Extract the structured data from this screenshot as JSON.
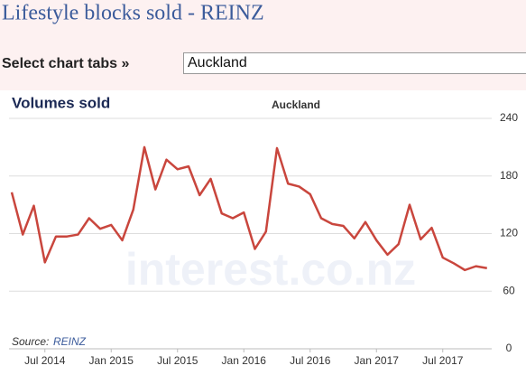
{
  "page": {
    "title": "Lifestyle blocks sold - REINZ",
    "selector_label": "Select chart tabs »",
    "selector_value": "Auckland"
  },
  "chart_data": {
    "type": "line",
    "title": "Volumes sold",
    "subtitle": "Auckland",
    "source_label": "Source:",
    "source": "REINZ",
    "watermark": "interest.co.nz",
    "x": [
      "2014-04",
      "2014-05",
      "2014-06",
      "2014-07",
      "2014-08",
      "2014-09",
      "2014-10",
      "2014-11",
      "2014-12",
      "2015-01",
      "2015-02",
      "2015-03",
      "2015-04",
      "2015-05",
      "2015-06",
      "2015-07",
      "2015-08",
      "2015-09",
      "2015-10",
      "2015-11",
      "2015-12",
      "2016-01",
      "2016-02",
      "2016-03",
      "2016-04",
      "2016-05",
      "2016-06",
      "2016-07",
      "2016-08",
      "2016-09",
      "2016-10",
      "2016-11",
      "2016-12",
      "2017-01",
      "2017-02",
      "2017-03",
      "2017-04",
      "2017-05",
      "2017-06",
      "2017-07",
      "2017-08",
      "2017-09",
      "2017-10",
      "2017-11"
    ],
    "series": [
      {
        "name": "Auckland",
        "color": "#c9463d",
        "values": [
          163,
          119,
          149,
          90,
          117,
          117,
          119,
          136,
          125,
          129,
          113,
          145,
          210,
          166,
          197,
          187,
          190,
          160,
          177,
          141,
          136,
          142,
          104,
          122,
          209,
          172,
          169,
          161,
          136,
          130,
          128,
          115,
          132,
          113,
          98,
          109,
          150,
          114,
          126,
          95,
          89,
          82,
          86,
          84
        ]
      }
    ],
    "ylim": [
      0,
      240
    ],
    "yticks": [
      0,
      60,
      120,
      180,
      240
    ],
    "xticks": [
      {
        "value": "2014-07",
        "label": "Jul 2014"
      },
      {
        "value": "2015-01",
        "label": "Jan 2015"
      },
      {
        "value": "2015-07",
        "label": "Jul 2015"
      },
      {
        "value": "2016-01",
        "label": "Jan 2016"
      },
      {
        "value": "2016-07",
        "label": "Jul 2016"
      },
      {
        "value": "2017-01",
        "label": "Jan 2017"
      },
      {
        "value": "2017-07",
        "label": "Jul 2017"
      }
    ],
    "grid": true
  }
}
